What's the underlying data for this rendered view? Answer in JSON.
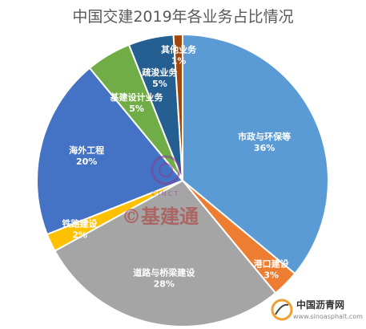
{
  "chart_data": {
    "type": "pie",
    "title": "中国交建2019年各业务占比情况",
    "slices": [
      {
        "name": "市政与环保等",
        "value": 36,
        "label": "36%",
        "color": "#5b9bd5"
      },
      {
        "name": "港口建设",
        "value": 3,
        "label": "3%",
        "color": "#ed7d31"
      },
      {
        "name": "道路与桥梁建设",
        "value": 28,
        "label": "28%",
        "color": "#a5a5a5"
      },
      {
        "name": "铁路建设",
        "value": 2,
        "label": "2%",
        "color": "#ffc000"
      },
      {
        "name": "海外工程",
        "value": 20,
        "label": "20%",
        "color": "#4472c4"
      },
      {
        "name": "基建设计业务",
        "value": 5,
        "label": "5%",
        "color": "#70ad47"
      },
      {
        "name": "疏浚业务",
        "value": 5,
        "label": "5%",
        "color": "#255e91"
      },
      {
        "name": "其他业务",
        "value": 1,
        "label": "1%",
        "color": "#9e480e"
      }
    ],
    "start_angle_deg": 0,
    "direction": "clockwise"
  },
  "watermark": {
    "text": "©基建通",
    "emblem_text": "CINCT"
  },
  "footer": {
    "site_name": "中国沥青网",
    "url": "www.sinoasphalt.com"
  }
}
